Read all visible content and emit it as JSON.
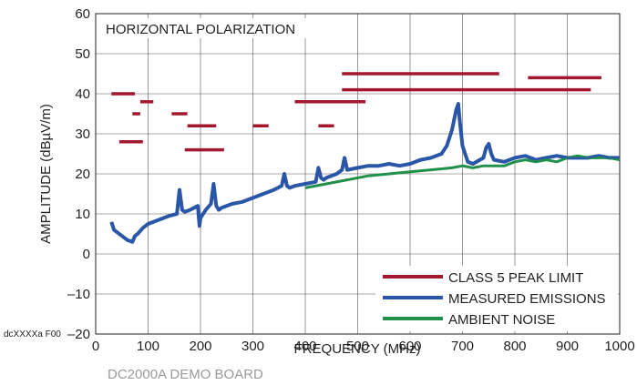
{
  "chart_data": {
    "type": "line",
    "annotation": "HORIZONTAL POLARIZATION",
    "xlabel": "FREQUENCY (MHz)",
    "ylabel": "AMPLITUDE (dBµV/m)",
    "figure_id": "dcXXXXa F00",
    "bottom_caption": "DC2000A DEMO BOARD",
    "xlim": [
      0,
      1000
    ],
    "ylim": [
      -20,
      60
    ],
    "x_ticks": [
      0,
      100,
      200,
      300,
      400,
      500,
      600,
      700,
      800,
      900,
      1000
    ],
    "y_ticks": [
      -20,
      -10,
      0,
      10,
      20,
      30,
      40,
      50,
      60
    ],
    "y_tick_labels": [
      "–20",
      "–10",
      "0",
      "10",
      "20",
      "30",
      "40",
      "50",
      "60"
    ],
    "grid": true,
    "legend_position": "bottom-right",
    "limit_segments": [
      {
        "x": [
          30,
          75
        ],
        "y": 40
      },
      {
        "x": [
          45,
          90
        ],
        "y": 28
      },
      {
        "x": [
          70,
          85
        ],
        "y": 35
      },
      {
        "x": [
          85,
          110
        ],
        "y": 38
      },
      {
        "x": [
          145,
          175
        ],
        "y": 35
      },
      {
        "x": [
          170,
          245
        ],
        "y": 26
      },
      {
        "x": [
          175,
          230
        ],
        "y": 32
      },
      {
        "x": [
          300,
          330
        ],
        "y": 32
      },
      {
        "x": [
          380,
          515
        ],
        "y": 38
      },
      {
        "x": [
          425,
          455
        ],
        "y": 32
      },
      {
        "x": [
          470,
          770
        ],
        "y": 45
      },
      {
        "x": [
          470,
          945
        ],
        "y": 41
      },
      {
        "x": [
          825,
          965
        ],
        "y": 44
      }
    ],
    "series": [
      {
        "name": "CLASS 5 PEAK LIMIT",
        "color": "#a3182f"
      },
      {
        "name": "MEASURED EMISSIONS",
        "color": "#2a56a8",
        "x": [
          30,
          35,
          40,
          50,
          60,
          70,
          75,
          80,
          90,
          100,
          120,
          140,
          155,
          160,
          165,
          170,
          180,
          195,
          198,
          200,
          210,
          220,
          225,
          230,
          235,
          240,
          260,
          280,
          300,
          320,
          340,
          355,
          360,
          365,
          370,
          380,
          400,
          420,
          425,
          430,
          435,
          440,
          460,
          470,
          475,
          480,
          500,
          520,
          540,
          560,
          580,
          600,
          620,
          640,
          660,
          670,
          680,
          688,
          692,
          695,
          700,
          710,
          720,
          740,
          745,
          750,
          755,
          760,
          780,
          800,
          820,
          840,
          860,
          880,
          900,
          920,
          940,
          960,
          980,
          1000
        ],
        "y": [
          8,
          6,
          5.5,
          4.5,
          3.5,
          3,
          4.5,
          5,
          6.5,
          7.5,
          8.5,
          9.5,
          10,
          16,
          11,
          10.5,
          11,
          12,
          7,
          9,
          11,
          12.5,
          17.5,
          12,
          11,
          11.5,
          12.5,
          13,
          14,
          15,
          16,
          17,
          20,
          17,
          16.5,
          17,
          17.5,
          18,
          21.5,
          19,
          18.5,
          19,
          20,
          21,
          24,
          21,
          21.5,
          22,
          22,
          22.5,
          22,
          22.5,
          23.5,
          24,
          25,
          27,
          31,
          36,
          37.5,
          33,
          27,
          23,
          22.5,
          24,
          26.5,
          27.5,
          25,
          23.5,
          23,
          24,
          24.5,
          23.5,
          24,
          24.5,
          24,
          24,
          24,
          24.5,
          24,
          24
        ]
      },
      {
        "name": "AMBIENT NOISE",
        "color": "#21904a",
        "x": [
          400,
          440,
          480,
          520,
          560,
          600,
          640,
          680,
          700,
          720,
          740,
          760,
          780,
          800,
          820,
          840,
          860,
          880,
          900,
          920,
          940,
          960,
          980,
          1000
        ],
        "y": [
          16.5,
          17.5,
          18.5,
          19.5,
          20,
          20.5,
          21,
          21.5,
          22,
          21.5,
          22,
          22,
          22,
          23,
          23.5,
          23,
          23.5,
          23,
          24,
          24.5,
          24,
          24,
          24,
          23.5
        ]
      }
    ]
  }
}
